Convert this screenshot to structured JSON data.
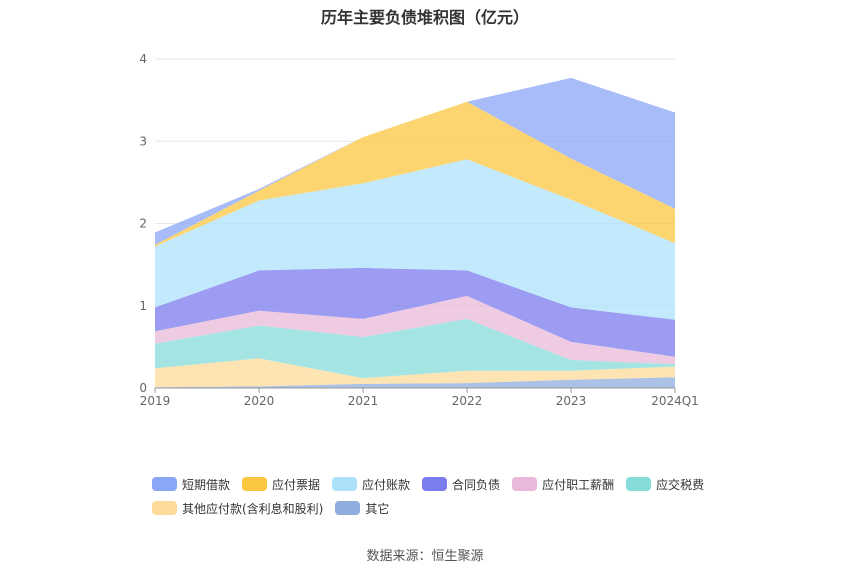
{
  "title": "历年主要负债堆积图（亿元）",
  "source": "数据来源：恒生聚源",
  "colors": {
    "短期借款": "#8aa6f7",
    "应付票据": "#fcc740",
    "应付账款": "#ade1fb",
    "合同负债": "#7b7cee",
    "应付职工薪酬": "#eab8da",
    "应交税费": "#86dcd9",
    "其他应付款(含利息和股利)": "#fedb9a",
    "其它": "#8faedd"
  },
  "chart_data": {
    "type": "area",
    "stacked": true,
    "title": "历年主要负债堆积图（亿元）",
    "categories": [
      "2019",
      "2020",
      "2021",
      "2022",
      "2023",
      "2024Q1"
    ],
    "y_ticks": [
      "0",
      "1",
      "2",
      "3",
      "4"
    ],
    "ylim": [
      0,
      4
    ],
    "grid": true,
    "legend_position": "bottom",
    "series": [
      {
        "name": "其它",
        "values": [
          0.01,
          0.02,
          0.05,
          0.06,
          0.1,
          0.13
        ]
      },
      {
        "name": "其他应付款(含利息和股利)",
        "values": [
          0.23,
          0.34,
          0.07,
          0.15,
          0.11,
          0.13
        ]
      },
      {
        "name": "应交税费",
        "values": [
          0.3,
          0.4,
          0.5,
          0.63,
          0.13,
          0.03
        ]
      },
      {
        "name": "应付职工薪酬",
        "values": [
          0.15,
          0.18,
          0.22,
          0.28,
          0.22,
          0.09
        ]
      },
      {
        "name": "合同负债",
        "values": [
          0.29,
          0.49,
          0.62,
          0.31,
          0.42,
          0.45
        ]
      },
      {
        "name": "应付账款",
        "values": [
          0.74,
          0.85,
          1.03,
          1.35,
          1.31,
          0.93
        ]
      },
      {
        "name": "应付票据",
        "values": [
          0.02,
          0.12,
          0.56,
          0.7,
          0.5,
          0.42
        ]
      },
      {
        "name": "短期借款",
        "values": [
          0.15,
          0.02,
          0.0,
          0.0,
          0.98,
          1.17
        ]
      }
    ]
  },
  "legend": {
    "rows": [
      [
        "短期借款",
        "应付票据",
        "应付账款",
        "合同负债",
        "应付职工薪酬",
        "应交税费"
      ],
      [
        "其他应付款(含利息和股利)",
        "其它"
      ]
    ]
  }
}
